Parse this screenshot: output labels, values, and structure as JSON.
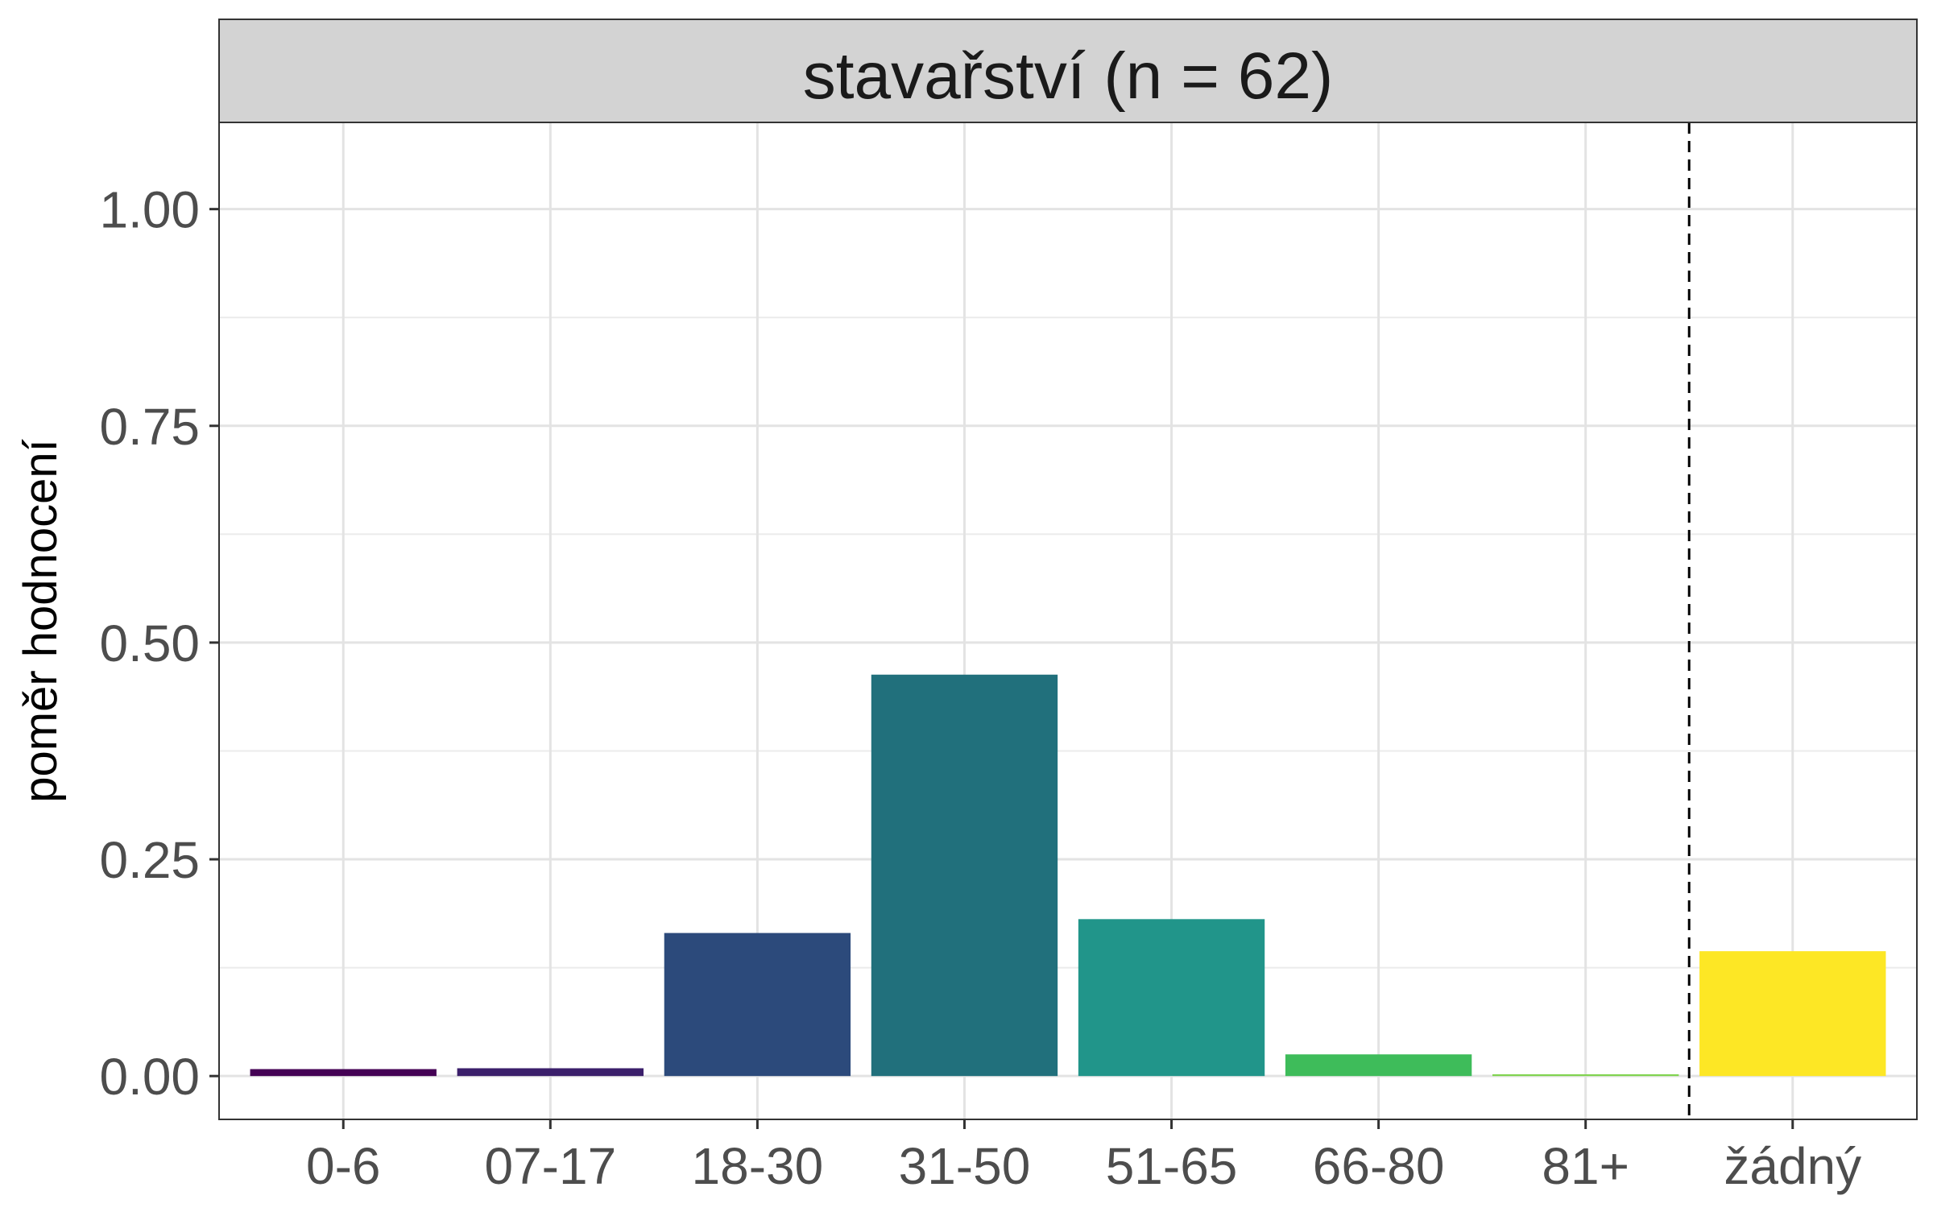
{
  "chart_data": {
    "type": "bar",
    "facet_title": "stavařství (n = 62)",
    "ylabel": "poměr hodnocení",
    "xlabel": "",
    "categories": [
      "0-6",
      "07-17",
      "18-30",
      "31-50",
      "51-65",
      "66-80",
      "81+",
      "žádný"
    ],
    "values": [
      0.008,
      0.009,
      0.165,
      0.463,
      0.181,
      0.025,
      0.002,
      0.144
    ],
    "colors": [
      "#440154",
      "#3b1f6b",
      "#2c4a7b",
      "#21707c",
      "#21958a",
      "#3ebc5a",
      "#7fd34e",
      "#fde725"
    ],
    "ylim": [
      -0.05,
      1.1
    ],
    "yticks": [
      0.0,
      0.25,
      0.5,
      0.75,
      1.0
    ],
    "ytick_labels": [
      "0.00",
      "0.25",
      "0.50",
      "0.75",
      "1.00"
    ],
    "reference_line": {
      "after_category": "81+",
      "style": "dashed",
      "color": "#000000"
    },
    "grid": true,
    "legend": "none"
  }
}
